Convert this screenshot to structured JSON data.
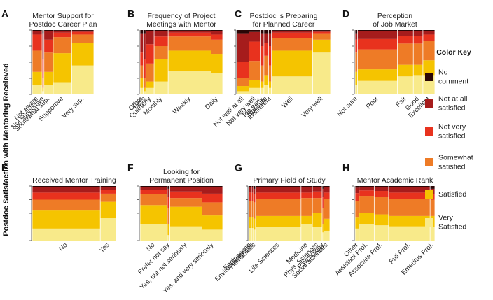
{
  "y_axis_label": "Postdoc Satisfaction with Mentoring Receieved",
  "color_key": {
    "title": "Color Key",
    "levels": [
      {
        "label_lines": [
          "No",
          "comment"
        ],
        "color": "#2a0606"
      },
      {
        "label_lines": [
          "Not at all",
          "satisfied"
        ],
        "color": "#a61c1c"
      },
      {
        "label_lines": [
          "Not very",
          "satisfied"
        ],
        "color": "#e8321e"
      },
      {
        "label_lines": [
          "Somewhat",
          "satisfied"
        ],
        "color": "#ee7b26"
      },
      {
        "label_lines": [
          "Satisfied"
        ],
        "color": "#f5c400"
      },
      {
        "label_lines": [
          "Very",
          "Satisfied"
        ],
        "color": "#f8ea8a"
      }
    ]
  },
  "chart_data": [
    {
      "type": "mosaic",
      "panel": "A",
      "title_lines": [
        "Mentor Support for",
        "Postdoc Career Plan"
      ],
      "categories": [
        "Not aware",
        "Not supportive",
        "Somewhat sup.",
        "Supportive",
        "Very sup."
      ],
      "widths": [
        0.16,
        0.03,
        0.15,
        0.3,
        0.36
      ],
      "shares": [
        [
          0.02,
          0.05,
          0.25,
          0.33,
          0.2,
          0.15
        ],
        [
          0.05,
          0.4,
          0.3,
          0.15,
          0.05,
          0.05
        ],
        [
          0.02,
          0.13,
          0.2,
          0.3,
          0.2,
          0.15
        ],
        [
          0.01,
          0.03,
          0.07,
          0.25,
          0.45,
          0.19
        ],
        [
          0.01,
          0.02,
          0.04,
          0.13,
          0.35,
          0.45
        ]
      ]
    },
    {
      "type": "mosaic",
      "panel": "B",
      "title_lines": [
        "Frequency of Project",
        "Meetings with Mentor"
      ],
      "categories": [
        "Other",
        "Less",
        "Quarterly",
        "Monthly",
        "Weekly",
        "Daily"
      ],
      "widths": [
        0.04,
        0.03,
        0.1,
        0.17,
        0.52,
        0.14
      ],
      "shares": [
        [
          0.05,
          0.3,
          0.2,
          0.2,
          0.15,
          0.1
        ],
        [
          0.05,
          0.4,
          0.3,
          0.15,
          0.05,
          0.05
        ],
        [
          0.02,
          0.2,
          0.3,
          0.28,
          0.1,
          0.1
        ],
        [
          0.02,
          0.08,
          0.15,
          0.2,
          0.35,
          0.2
        ],
        [
          0.01,
          0.03,
          0.06,
          0.22,
          0.32,
          0.36
        ],
        [
          0.02,
          0.05,
          0.08,
          0.22,
          0.3,
          0.33
        ]
      ]
    },
    {
      "type": "mosaic",
      "panel": "C",
      "title_lines": [
        "Postdoc is Preparing",
        "for Planned Career"
      ],
      "categories": [
        "Not well at all",
        "Not very well",
        "Too early",
        "Not sure",
        "Indifferent",
        "Well",
        "Very well"
      ],
      "widths": [
        0.13,
        0.12,
        0.04,
        0.05,
        0.03,
        0.44,
        0.19
      ],
      "shares": [
        [
          0.05,
          0.45,
          0.25,
          0.12,
          0.08,
          0.05
        ],
        [
          0.03,
          0.15,
          0.3,
          0.3,
          0.12,
          0.1
        ],
        [
          0.05,
          0.2,
          0.3,
          0.25,
          0.1,
          0.1
        ],
        [
          0.05,
          0.15,
          0.2,
          0.3,
          0.15,
          0.15
        ],
        [
          0.05,
          0.2,
          0.3,
          0.25,
          0.1,
          0.1
        ],
        [
          0.01,
          0.03,
          0.08,
          0.2,
          0.4,
          0.28
        ],
        [
          0.01,
          0.02,
          0.02,
          0.1,
          0.2,
          0.65
        ]
      ]
    },
    {
      "type": "mosaic",
      "panel": "D",
      "title_lines": [
        "Perception",
        "of Job Market"
      ],
      "categories": [
        "Not sure",
        "Poor",
        "Fair",
        "Good",
        "Excellent"
      ],
      "widths": [
        0.03,
        0.5,
        0.2,
        0.12,
        0.15
      ],
      "shares": [
        [
          0.05,
          0.1,
          0.2,
          0.3,
          0.2,
          0.15
        ],
        [
          0.02,
          0.12,
          0.16,
          0.31,
          0.18,
          0.21
        ],
        [
          0.02,
          0.07,
          0.12,
          0.33,
          0.18,
          0.28
        ],
        [
          0.02,
          0.07,
          0.12,
          0.33,
          0.16,
          0.3
        ],
        [
          0.02,
          0.05,
          0.1,
          0.3,
          0.23,
          0.3
        ]
      ]
    },
    {
      "type": "mosaic",
      "panel": "E",
      "title_lines": [
        "Received Mentor Training"
      ],
      "categories": [
        "No",
        "Yes"
      ],
      "widths": [
        0.81,
        0.19
      ],
      "shares": [
        [
          0.02,
          0.1,
          0.13,
          0.2,
          0.33,
          0.22
        ],
        [
          0.02,
          0.05,
          0.07,
          0.15,
          0.3,
          0.41
        ]
      ]
    },
    {
      "type": "mosaic",
      "panel": "F",
      "title_lines": [
        "Looking for",
        "Permanent Position"
      ],
      "categories": [
        "No",
        "Prefer not say",
        "Yes, but not seriously",
        "Yes, and very seriously"
      ],
      "widths": [
        0.33,
        0.03,
        0.39,
        0.25
      ],
      "shares": [
        [
          0.02,
          0.05,
          0.08,
          0.2,
          0.35,
          0.3
        ],
        [
          0.05,
          0.15,
          0.2,
          0.3,
          0.2,
          0.1
        ],
        [
          0.02,
          0.08,
          0.12,
          0.16,
          0.36,
          0.26
        ],
        [
          0.02,
          0.12,
          0.16,
          0.24,
          0.26,
          0.2
        ]
      ]
    },
    {
      "type": "mosaic",
      "panel": "G",
      "title_lines": [
        "Primary Field of Study"
      ],
      "categories": [
        "Engineering",
        "Environ Sciences",
        "Humanities",
        "Life Sciences",
        "Medicine",
        "Phys. Sciences",
        "Psychology",
        "Social Sciences"
      ],
      "widths": [
        0.035,
        0.025,
        0.025,
        0.56,
        0.14,
        0.12,
        0.02,
        0.075
      ],
      "shares": [
        [
          0.02,
          0.1,
          0.15,
          0.3,
          0.2,
          0.23
        ],
        [
          0.02,
          0.1,
          0.15,
          0.3,
          0.2,
          0.23
        ],
        [
          0.05,
          0.1,
          0.15,
          0.3,
          0.2,
          0.2
        ],
        [
          0.02,
          0.1,
          0.12,
          0.31,
          0.2,
          0.25
        ],
        [
          0.02,
          0.1,
          0.1,
          0.33,
          0.15,
          0.3
        ],
        [
          0.02,
          0.08,
          0.12,
          0.28,
          0.25,
          0.25
        ],
        [
          0.05,
          0.15,
          0.2,
          0.3,
          0.15,
          0.15
        ],
        [
          0.02,
          0.1,
          0.12,
          0.36,
          0.22,
          0.18
        ]
      ]
    },
    {
      "type": "mosaic",
      "panel": "H",
      "title_lines": [
        "Mentor Academic Rank"
      ],
      "categories": [
        "Other",
        "Assistant Prof.",
        "Associate Prof.",
        "Full Prof.",
        "Emeritus Prof."
      ],
      "widths": [
        0.05,
        0.19,
        0.18,
        0.52,
        0.06
      ],
      "shares": [
        [
          0.03,
          0.1,
          0.15,
          0.3,
          0.2,
          0.22
        ],
        [
          0.02,
          0.06,
          0.1,
          0.32,
          0.2,
          0.3
        ],
        [
          0.02,
          0.07,
          0.11,
          0.32,
          0.2,
          0.28
        ],
        [
          0.02,
          0.1,
          0.12,
          0.31,
          0.19,
          0.26
        ],
        [
          0.05,
          0.1,
          0.1,
          0.3,
          0.2,
          0.25
        ]
      ]
    }
  ]
}
